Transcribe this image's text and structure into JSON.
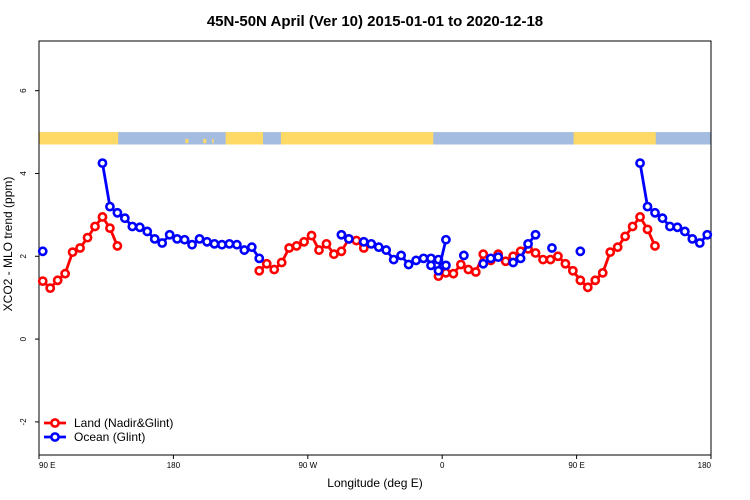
{
  "chart_data": {
    "type": "line",
    "title": "45N-50N April (Ver 10)   2015-01-01 to 2020-12-18",
    "xlabel": "Longitude (deg E)",
    "ylabel": "XCO2 - MLO trend (ppm)",
    "xlim": [
      90,
      540
    ],
    "ylim": [
      -2.8,
      7.2
    ],
    "x_ticks": [
      {
        "value": 90,
        "label": "90 E"
      },
      {
        "value": 180,
        "label": "180"
      },
      {
        "value": 270,
        "label": "90 W"
      },
      {
        "value": 360,
        "label": "0"
      },
      {
        "value": 450,
        "label": "90 E"
      },
      {
        "value": 540,
        "label": "180"
      }
    ],
    "y_ticks": [
      {
        "value": -2,
        "label": "-2"
      },
      {
        "value": 0,
        "label": "0"
      },
      {
        "value": 2,
        "label": "2"
      },
      {
        "value": 4,
        "label": "4"
      },
      {
        "value": 6,
        "label": "6"
      }
    ],
    "land_ocean_strip": {
      "y_range": [
        4.7,
        5.0
      ],
      "land_color": "#FFD966",
      "ocean_color": "#A4BCE0",
      "land_x_ranges": [
        [
          90,
          143
        ],
        [
          215,
          240
        ],
        [
          252,
          354
        ],
        [
          448,
          503
        ]
      ],
      "islands": [
        [
          188,
          190
        ],
        [
          200,
          202
        ],
        [
          206,
          207
        ],
        [
          219,
          222
        ],
        [
          313,
          317
        ],
        [
          318,
          322
        ]
      ]
    },
    "legend": {
      "placement": "bottom-left"
    },
    "series": [
      {
        "name": "Land (Nadir&Glint)",
        "color": "#FF0000",
        "segments": [
          {
            "x": [
              92.5,
              97.5,
              102.5,
              107.5,
              112.5,
              117.5,
              122.5,
              127.5,
              132.5,
              137.5,
              142.5,
              147.5
            ],
            "y": [
              1.4,
              1.23,
              1.42,
              1.58,
              2.1,
              2.2,
              2.45,
              2.72,
              2.95,
              2.68,
              2.25,
              null
            ]
          },
          {
            "x": [
              237.5,
              242.5,
              247.5,
              252.5,
              257.5,
              262.5,
              267.5,
              272.5,
              277.5,
              282.5,
              287.5,
              292.5,
              297.5,
              302.5,
              307.5
            ],
            "y": [
              1.65,
              1.82,
              1.68,
              1.85,
              2.2,
              2.25,
              2.35,
              2.5,
              2.15,
              2.3,
              2.05,
              2.12,
              2.42,
              2.38,
              2.2
            ]
          },
          {
            "x": [
              357.5,
              362.5,
              367.5,
              372.5,
              377.5,
              382.5,
              387.5,
              392.5,
              397.5,
              402.5,
              407.5,
              412.5,
              417.5,
              422.5,
              427.5,
              432.5,
              437.5,
              442.5,
              447.5,
              452.5,
              457.5,
              462.5,
              467.5,
              472.5,
              477.5,
              482.5,
              487.5,
              492.5,
              497.5,
              502.5
            ],
            "y": [
              1.52,
              1.6,
              1.58,
              1.8,
              1.68,
              1.62,
              2.05,
              1.9,
              2.05,
              1.88,
              2.0,
              2.12,
              2.18,
              2.08,
              1.92,
              1.92,
              2.0,
              1.82,
              1.65,
              1.42,
              1.25,
              1.42,
              1.6,
              2.1,
              2.22,
              2.48,
              2.72,
              2.95,
              2.65,
              2.25
            ]
          }
        ]
      },
      {
        "name": "Ocean (Glint)",
        "color": "#0000FF",
        "segments": [
          {
            "x": [
              92.5
            ],
            "y": [
              2.12
            ]
          },
          {
            "x": [
              132.5,
              137.5,
              142.5,
              147.5,
              152.5,
              157.5,
              162.5,
              167.5,
              172.5,
              177.5,
              182.5,
              187.5,
              192.5,
              197.5,
              202.5,
              207.5,
              212.5,
              217.5,
              222.5,
              227.5,
              232.5,
              237.5
            ],
            "y": [
              4.25,
              3.2,
              3.05,
              2.92,
              2.72,
              2.7,
              2.6,
              2.42,
              2.32,
              2.52,
              2.42,
              2.4,
              2.28,
              2.42,
              2.35,
              2.3,
              2.28,
              2.3,
              2.28,
              2.15,
              2.22,
              1.95
            ]
          },
          {
            "x": [
              292.5,
              297.5
            ],
            "y": [
              2.52,
              2.42
            ]
          },
          {
            "x": [
              307.5,
              312.5,
              317.5,
              322.5,
              327.5,
              332.5,
              337.5,
              342.5,
              347.5,
              352.5,
              357.5,
              362.5
            ],
            "y": [
              2.35,
              2.3,
              2.22,
              2.15,
              1.92,
              2.02,
              1.8,
              1.9,
              1.95,
              1.95,
              1.92,
              1.78
            ]
          },
          {
            "x": [
              352.5,
              357.5,
              362.5
            ],
            "y": [
              1.78,
              1.65,
              2.4
            ]
          },
          {
            "x": [
              374.5
            ],
            "y": [
              2.02
            ]
          },
          {
            "x": [
              387.5,
              392.5,
              397.5
            ],
            "y": [
              1.82,
              1.95,
              1.98
            ]
          },
          {
            "x": [
              407.5,
              412.5,
              417.5,
              422.5
            ],
            "y": [
              1.85,
              1.95,
              2.3,
              2.52
            ]
          },
          {
            "x": [
              433.5
            ],
            "y": [
              2.2
            ]
          },
          {
            "x": [
              452.5
            ],
            "y": [
              2.12
            ]
          },
          {
            "x": [
              492.5,
              497.5,
              502.5,
              507.5,
              512.5,
              517.5,
              522.5,
              527.5,
              532.5,
              537.5
            ],
            "y": [
              4.25,
              3.2,
              3.05,
              2.92,
              2.72,
              2.7,
              2.6,
              2.42,
              2.32,
              2.52
            ]
          }
        ]
      }
    ]
  }
}
